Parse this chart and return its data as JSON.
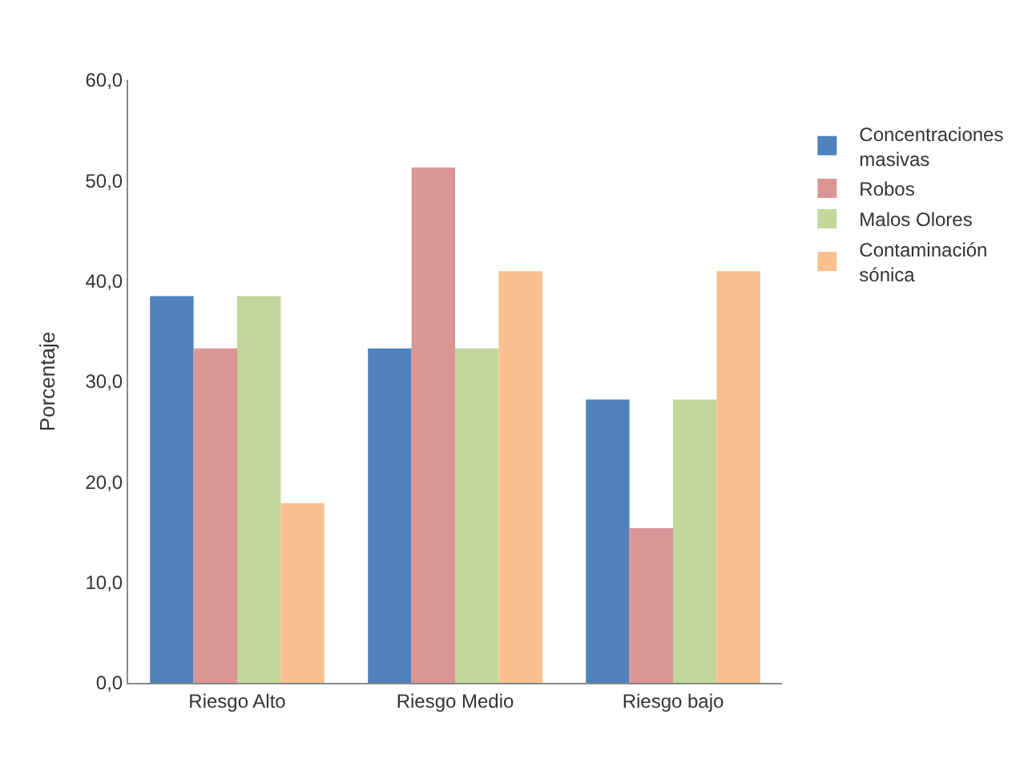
{
  "chart_data": {
    "type": "bar",
    "ylabel": "Porcentaje",
    "categories": [
      "Riesgo Alto",
      "Riesgo Medio",
      "Riesgo bajo"
    ],
    "series": [
      {
        "name": "Concentraciones masivas",
        "color": "#4f81bd",
        "values": [
          38.5,
          33.3,
          28.2
        ]
      },
      {
        "name": "Robos",
        "color": "#d99694",
        "values": [
          33.3,
          51.3,
          15.4
        ]
      },
      {
        "name": "Malos Olores",
        "color": "#c3d69b",
        "values": [
          38.5,
          33.3,
          28.2
        ]
      },
      {
        "name": "Contaminación sónica",
        "color": "#fac090",
        "values": [
          17.9,
          41.0,
          41.0
        ]
      }
    ],
    "ylim": [
      0,
      60
    ],
    "yticks": [
      {
        "value": 0,
        "label": "0,0"
      },
      {
        "value": 10,
        "label": "10,0"
      },
      {
        "value": 20,
        "label": "20,0"
      },
      {
        "value": 30,
        "label": "30,0"
      },
      {
        "value": 40,
        "label": "40,0"
      },
      {
        "value": 50,
        "label": "50,0"
      },
      {
        "value": 60,
        "label": "60,0"
      }
    ],
    "legend": "right"
  }
}
